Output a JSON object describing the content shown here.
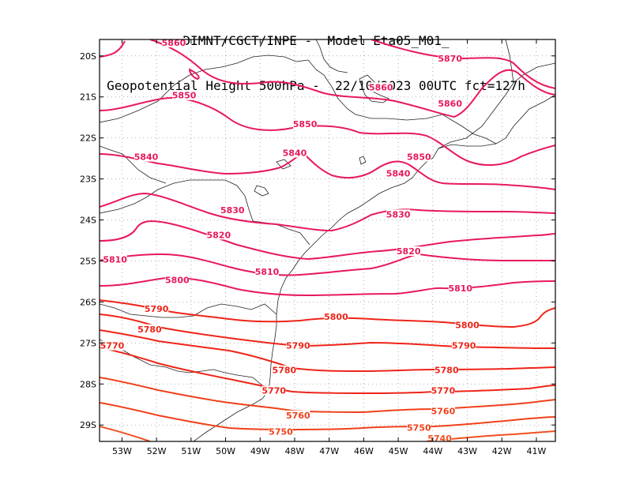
{
  "header": {
    "line1": "DIMNT/CGCT/INPE -  Model Eta05_M01_",
    "line2": "Geopotential Height 500hPa -  22/10/2023 00UTC fct=127h"
  },
  "axes": {
    "lon_labels": [
      "53W",
      "52W",
      "51W",
      "50W",
      "49W",
      "48W",
      "47W",
      "46W",
      "45W",
      "44W",
      "43W",
      "42W",
      "41W"
    ],
    "lat_labels": [
      "20S",
      "21S",
      "22S",
      "23S",
      "24S",
      "25S",
      "26S",
      "27S",
      "28S",
      "29S"
    ],
    "lon_range": [
      -53.65,
      -40.45
    ],
    "lat_range": [
      -29.4,
      -19.6
    ]
  },
  "contours": [
    {
      "value": "5870",
      "color": "#e8195a",
      "label_lon": -43.5,
      "label_lat": -20.1
    },
    {
      "value": "5860",
      "color": "#e8195a",
      "label_lon": -51.5,
      "label_lat": -19.7
    },
    {
      "value": "5860",
      "color": "#e8195a",
      "label_lon": -45.5,
      "label_lat": -20.8
    },
    {
      "value": "5860",
      "color": "#e8195a",
      "label_lon": -43.5,
      "label_lat": -21.2
    },
    {
      "value": "5850",
      "color": "#e8195a",
      "label_lon": -51.2,
      "label_lat": -21.0
    },
    {
      "value": "5850",
      "color": "#e8195a",
      "label_lon": -47.7,
      "label_lat": -21.7
    },
    {
      "value": "5850",
      "color": "#e8195a",
      "label_lon": -44.4,
      "label_lat": -22.5
    },
    {
      "value": "5840",
      "color": "#e8195a",
      "label_lon": -52.3,
      "label_lat": -22.5
    },
    {
      "value": "5840",
      "color": "#e8195a",
      "label_lon": -48.0,
      "label_lat": -22.4
    },
    {
      "value": "5840",
      "color": "#e8195a",
      "label_lon": -45.0,
      "label_lat": -22.9
    },
    {
      "value": "5830",
      "color": "#e8195a",
      "label_lon": -49.8,
      "label_lat": -23.8
    },
    {
      "value": "5830",
      "color": "#e8195a",
      "label_lon": -45.0,
      "label_lat": -23.9
    },
    {
      "value": "5820",
      "color": "#e8195a",
      "label_lon": -50.2,
      "label_lat": -24.4
    },
    {
      "value": "5820",
      "color": "#e8195a",
      "label_lon": -44.7,
      "label_lat": -24.8
    },
    {
      "value": "5810",
      "color": "#e8195a",
      "label_lon": -53.2,
      "label_lat": -25.0
    },
    {
      "value": "5810",
      "color": "#e8195a",
      "label_lon": -48.8,
      "label_lat": -25.3
    },
    {
      "value": "5810",
      "color": "#e8195a",
      "label_lon": -43.2,
      "label_lat": -25.7
    },
    {
      "value": "5800",
      "color": "#e8195a",
      "label_lon": -51.4,
      "label_lat": -25.5
    },
    {
      "value": "5800",
      "color": "#ee2418",
      "label_lon": -46.8,
      "label_lat": -26.4
    },
    {
      "value": "5800",
      "color": "#ee2418",
      "label_lon": -43.0,
      "label_lat": -26.6
    },
    {
      "value": "5790",
      "color": "#ee2418",
      "label_lon": -52.0,
      "label_lat": -26.2
    },
    {
      "value": "5790",
      "color": "#ee2418",
      "label_lon": -47.9,
      "label_lat": -27.1
    },
    {
      "value": "5790",
      "color": "#ee2418",
      "label_lon": -43.1,
      "label_lat": -27.1
    },
    {
      "value": "5780",
      "color": "#ee2418",
      "label_lon": -52.2,
      "label_lat": -26.7
    },
    {
      "value": "5780",
      "color": "#ee2418",
      "label_lon": -48.3,
      "label_lat": -27.7
    },
    {
      "value": "5780",
      "color": "#ee2418",
      "label_lon": -43.6,
      "label_lat": -27.7
    },
    {
      "value": "5770",
      "color": "#ee2418",
      "label_lon": -53.3,
      "label_lat": -27.1
    },
    {
      "value": "5770",
      "color": "#ee2418",
      "label_lon": -48.6,
      "label_lat": -28.2
    },
    {
      "value": "5770",
      "color": "#ee2418",
      "label_lon": -43.7,
      "label_lat": -28.2
    },
    {
      "value": "5760",
      "color": "#f0401a",
      "label_lon": -47.9,
      "label_lat": -28.8
    },
    {
      "value": "5760",
      "color": "#f0401a",
      "label_lon": -43.7,
      "label_lat": -28.7
    },
    {
      "value": "5750",
      "color": "#f0401a",
      "label_lon": -48.4,
      "label_lat": -29.2
    },
    {
      "value": "5750",
      "color": "#f0401a",
      "label_lon": -44.4,
      "label_lat": -29.1
    },
    {
      "value": "5740",
      "color": "#f05020",
      "label_lon": -43.8,
      "label_lat": -29.4
    }
  ]
}
